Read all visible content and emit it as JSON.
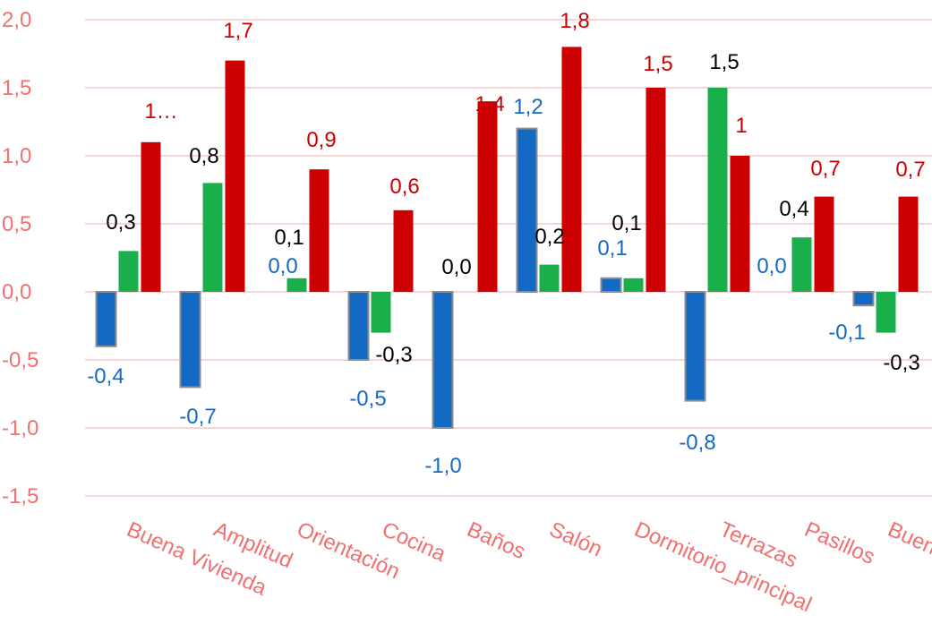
{
  "colors": {
    "axis_text": "#F07070",
    "gridline": "#F5C6C6",
    "series_blue": "#1469C4",
    "series_green": "#19B04C",
    "series_red": "#CC0000",
    "bar_edge": "#8C8C8C",
    "label_black": "#000000"
  },
  "chart_data": {
    "type": "bar",
    "categories": [
      "Buena Vivienda",
      "Amplitud",
      "Orientación",
      "Cocina",
      "Baños",
      "Salón",
      "Dormitorio_principal",
      "Terrazas",
      "Pasillos",
      "Buen"
    ],
    "ylim": [
      -1.5,
      2.0
    ],
    "yticks": [
      "2,0",
      "1,5",
      "1,0",
      "0,5",
      "0,0",
      "-0,5",
      "-1,0",
      "-1,5"
    ],
    "grid": true,
    "legend": "none",
    "series": [
      {
        "color": "blue",
        "values": [
          -0.4,
          -0.7,
          0.0,
          -0.5,
          -1.0,
          1.2,
          0.1,
          -0.8,
          0.0,
          -0.1
        ],
        "labels": [
          "-0,4",
          "-0,7",
          "0,0",
          "-0,5",
          "",
          "1,2",
          "0,1",
          "-0,8",
          "0,0",
          "-0,1"
        ]
      },
      {
        "color": "green",
        "values": [
          0.3,
          0.8,
          0.1,
          -0.3,
          0.0,
          0.2,
          0.1,
          1.5,
          0.4,
          -0.3
        ],
        "labels": [
          "0,3",
          "0,8",
          "0,1",
          "-0,3",
          "",
          "0,2",
          "0,1",
          "1,5",
          "0,4",
          "-0,3"
        ]
      },
      {
        "color": "red",
        "values": [
          1.1,
          1.7,
          0.9,
          0.6,
          1.4,
          1.8,
          1.5,
          1.0,
          0.7,
          0.7
        ],
        "labels": [
          "1…",
          "1,7",
          "0,9",
          "0,6",
          "1,4",
          "1,8",
          "1,5",
          "1",
          "0,7",
          "0,7"
        ]
      }
    ],
    "extra_labels": [
      "0,0",
      "-1,0"
    ]
  }
}
